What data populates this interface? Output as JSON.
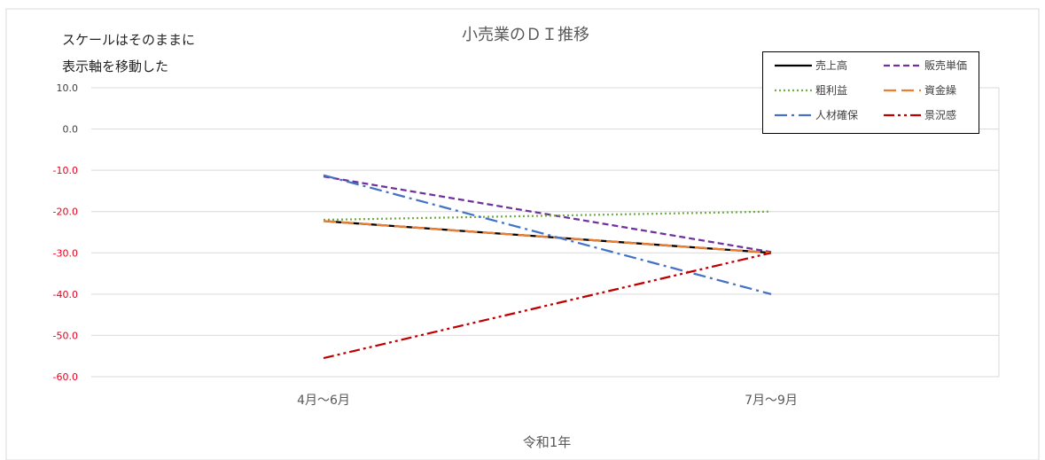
{
  "annotation": {
    "line1": "スケールはそのままに",
    "line2": "表示軸を移動した"
  },
  "chart_data": {
    "type": "line",
    "title": "小売業のＤＩ推移",
    "xlabel": "令和1年",
    "ylabel": "",
    "categories": [
      "4月～6月",
      "7月～9月"
    ],
    "ylim": [
      -60,
      10
    ],
    "yticks": [
      "10.0",
      "0.0",
      "-10.0",
      "-20.0",
      "-30.0",
      "-40.0",
      "-50.0",
      "-60.0"
    ],
    "negative_tick_color": "#E8001C",
    "positive_tick_color": "#404040",
    "grid": true,
    "legend_position": "top-right",
    "legend_border": true,
    "series": [
      {
        "name": "売上高",
        "values": [
          -22.3,
          -30.0
        ],
        "color": "#000000",
        "dash": "solid"
      },
      {
        "name": "販売単価",
        "values": [
          -11.5,
          -29.8
        ],
        "color": "#7030A0",
        "dash": "dash"
      },
      {
        "name": "粗利益",
        "values": [
          -22.0,
          -20.0
        ],
        "color": "#70AD47",
        "dash": "dot"
      },
      {
        "name": "資金繰",
        "values": [
          -22.3,
          -30.0
        ],
        "color": "#ED7D31",
        "dash": "longdash"
      },
      {
        "name": "人材確保",
        "values": [
          -11.2,
          -40.0
        ],
        "color": "#4472C4",
        "dash": "dashdot"
      },
      {
        "name": "景況感",
        "values": [
          -55.5,
          -30.0
        ],
        "color": "#C00000",
        "dash": "dashdotdot"
      }
    ]
  }
}
